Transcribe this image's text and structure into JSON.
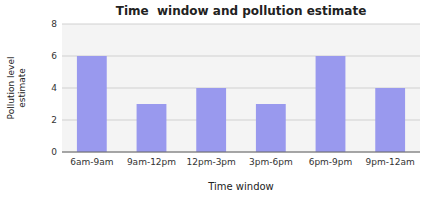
{
  "chart_data": {
    "type": "bar",
    "title": "Time  window and pollution estimate",
    "xlabel": "Time window",
    "ylabel": "Pollution level\nestimate",
    "categories": [
      "6am-9am",
      "9am-12pm",
      "12pm-3pm",
      "3pm-6pm",
      "6pm-9pm",
      "9pm-12am"
    ],
    "values": [
      6,
      3,
      4,
      3,
      6,
      4
    ],
    "color": "#9999ee",
    "ylim": [
      0,
      8
    ],
    "yticks": [
      0,
      2,
      4,
      6,
      8
    ],
    "grid": true
  }
}
